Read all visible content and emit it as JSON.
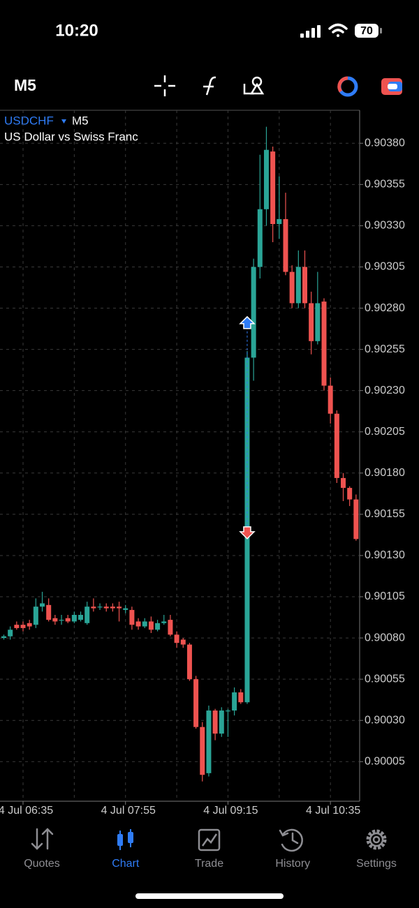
{
  "status_bar": {
    "time": "10:20",
    "battery": "70"
  },
  "toolbar": {
    "timeframe": "M5"
  },
  "chart_data": {
    "type": "candlestick",
    "symbol": "USDCHF",
    "timeframe": "M5",
    "subtitle": "US Dollar vs Swiss Franc",
    "categories": [
      null,
      null,
      null,
      "4 Jul 06:35",
      null,
      null,
      null,
      null,
      null,
      null,
      null,
      null,
      null,
      null,
      null,
      null,
      null,
      null,
      null,
      "4 Jul 07:55",
      null,
      null,
      null,
      null,
      null,
      null,
      null,
      null,
      null,
      null,
      null,
      null,
      null,
      null,
      null,
      "4 Jul 09:15",
      null,
      null,
      null,
      null,
      null,
      null,
      null,
      null,
      null,
      null,
      null,
      null,
      null,
      null,
      null,
      "4 Jul 10:35",
      null,
      null,
      null,
      null
    ],
    "open": [
      0.9008,
      0.90081,
      0.90088,
      0.90088,
      0.90089,
      0.90088,
      0.90099,
      0.901,
      0.90092,
      0.90091,
      0.90092,
      0.9009,
      0.90091,
      0.90089,
      0.90099,
      0.90099,
      0.90099,
      0.90099,
      0.90099,
      0.90097,
      0.90097,
      0.9009,
      0.90087,
      0.9009,
      0.90085,
      0.90089,
      0.90091,
      0.90082,
      0.90079,
      0.90076,
      0.90055,
      0.90026,
      0.89998,
      0.90036,
      0.90022,
      0.90036,
      0.90036,
      0.90047,
      0.90041,
      0.9025,
      0.90305,
      0.9034,
      0.90375,
      0.90331,
      0.90334,
      0.90302,
      0.90283,
      0.90305,
      0.90283,
      0.9026,
      0.90284,
      0.90233,
      0.90216,
      0.90177,
      0.90171,
      0.90164
    ],
    "high": [
      0.90082,
      0.90087,
      0.9009,
      0.9009,
      0.90091,
      0.90104,
      0.90108,
      0.90104,
      0.90094,
      0.90094,
      0.90094,
      0.90096,
      0.90096,
      0.90102,
      0.90104,
      0.90101,
      0.90101,
      0.90101,
      0.90102,
      0.901,
      0.90099,
      0.90092,
      0.90092,
      0.90093,
      0.90091,
      0.90094,
      0.90094,
      0.90084,
      0.9008,
      0.90077,
      0.90057,
      0.90029,
      0.90039,
      0.90037,
      0.90038,
      0.90037,
      0.9005,
      0.90049,
      0.90254,
      0.9031,
      0.90373,
      0.9039,
      0.90378,
      0.9036,
      0.9035,
      0.90306,
      0.90315,
      0.90315,
      0.9029,
      0.90302,
      0.90286,
      0.90238,
      0.90218,
      0.9018,
      0.90172,
      0.90167
    ],
    "low": [
      0.90079,
      0.90079,
      0.90085,
      0.90084,
      0.90085,
      0.90086,
      0.90096,
      0.9009,
      0.90088,
      0.90088,
      0.90089,
      0.90089,
      0.9009,
      0.90088,
      0.90096,
      0.90097,
      0.90096,
      0.90096,
      0.9009,
      0.90095,
      0.90085,
      0.90085,
      0.90086,
      0.90083,
      0.90084,
      0.90088,
      0.90081,
      0.90074,
      0.90074,
      0.90054,
      0.90025,
      0.89993,
      0.89996,
      0.90018,
      0.9002,
      0.9002,
      0.90033,
      0.9004,
      0.9004,
      0.90236,
      0.90298,
      0.9033,
      0.9032,
      0.90322,
      0.903,
      0.9028,
      0.9028,
      0.9028,
      0.90252,
      0.90258,
      0.9023,
      0.9021,
      0.90174,
      0.90163,
      0.9016,
      0.90139
    ],
    "close": [
      0.90081,
      0.90085,
      0.90086,
      0.90086,
      0.90087,
      0.90099,
      0.90101,
      0.90091,
      0.9009,
      0.90091,
      0.9009,
      0.90094,
      0.90094,
      0.90099,
      0.90098,
      0.90099,
      0.90098,
      0.90098,
      0.90098,
      0.90098,
      0.90088,
      0.90087,
      0.9009,
      0.90085,
      0.90089,
      0.9009,
      0.90082,
      0.90077,
      0.90076,
      0.90055,
      0.90026,
      0.89997,
      0.90036,
      0.90022,
      0.90036,
      0.90036,
      0.90047,
      0.90041,
      0.9025,
      0.90305,
      0.9034,
      0.90376,
      0.90331,
      0.90334,
      0.90302,
      0.90283,
      0.90305,
      0.90283,
      0.9026,
      0.90283,
      0.90233,
      0.90216,
      0.90177,
      0.90171,
      0.90164,
      0.9014
    ],
    "up_color": "#2aa597",
    "down_color": "#ef5350",
    "buy_price": 0.90271,
    "sell_price": 0.90144,
    "ylim": [
      0.89981,
      0.904
    ],
    "yticks": [
      {
        "value": 0.9038,
        "label": "0.90380"
      },
      0.90355,
      {
        "value": 0.9033,
        "label": "0.90330"
      },
      0.90305,
      {
        "value": 0.9028,
        "label": "0.90280"
      },
      0.90255,
      {
        "value": 0.9023,
        "label": "0.90230"
      },
      0.90205,
      {
        "value": 0.9018,
        "label": "0.90180"
      },
      0.90155,
      {
        "value": 0.9013,
        "label": "0.90130"
      },
      0.90105,
      {
        "value": 0.9008,
        "label": "0.90080"
      },
      0.90055,
      {
        "value": 0.9003,
        "label": "0.90030"
      },
      0.90005
    ],
    "grid": true
  },
  "tab_bar": {
    "tabs": [
      "Quotes",
      "Chart",
      "Trade",
      "History",
      "Settings"
    ],
    "active": 1
  }
}
